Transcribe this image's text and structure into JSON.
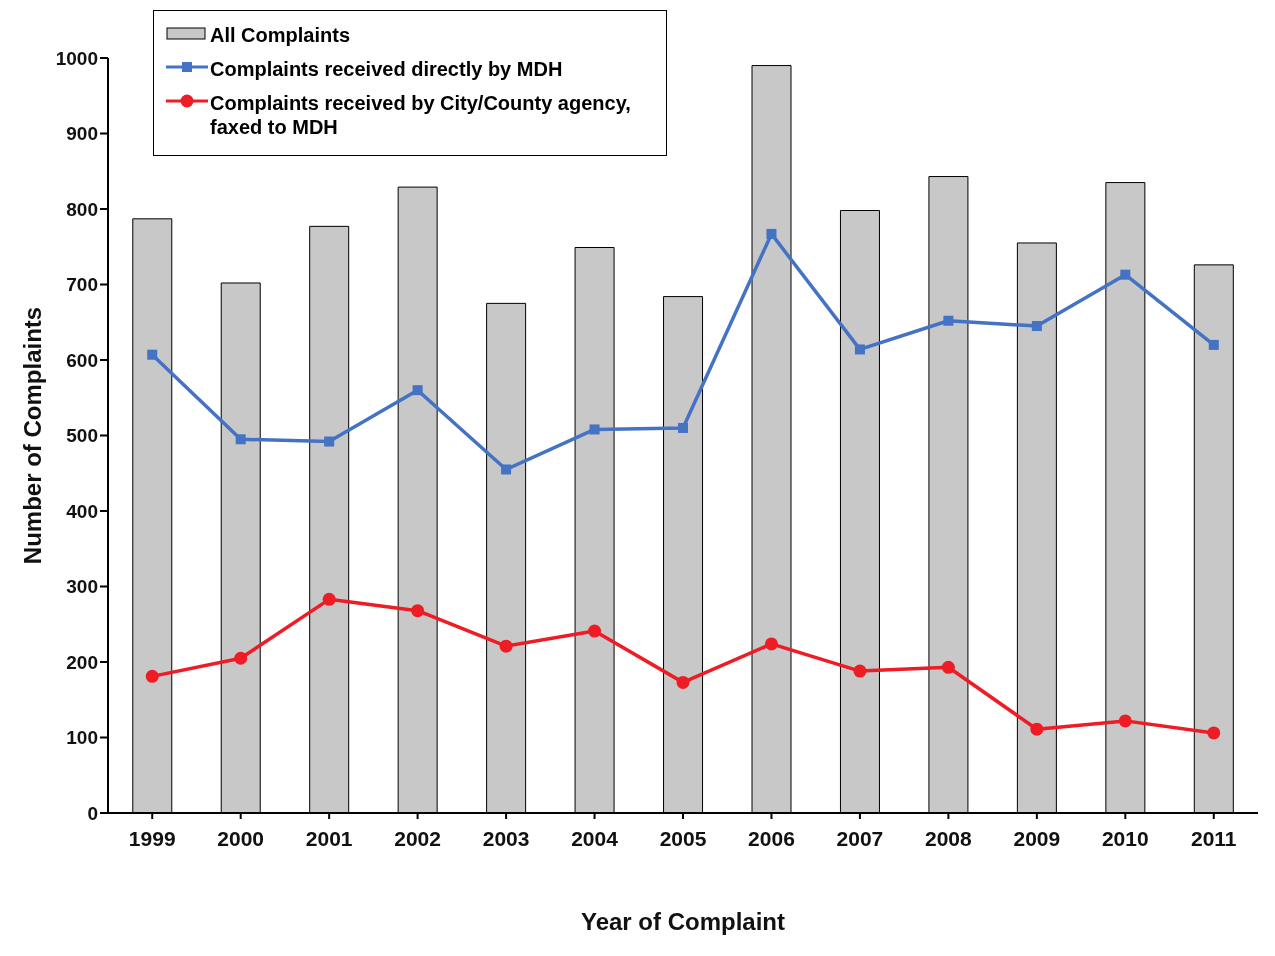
{
  "chart_data": {
    "type": "bar",
    "xlabel": "Year of Complaint",
    "ylabel": "Number of Complaints",
    "categories": [
      "1999",
      "2000",
      "2001",
      "2002",
      "2003",
      "2004",
      "2005",
      "2006",
      "2007",
      "2008",
      "2009",
      "2010",
      "2011"
    ],
    "ylim": [
      0,
      1000
    ],
    "yticks": [
      0,
      100,
      200,
      300,
      400,
      500,
      600,
      700,
      800,
      900,
      1000
    ],
    "grid": false,
    "legend": "top left",
    "series": [
      {
        "name": "All Complaints",
        "color": "#c8c8c8",
        "values": [
          787,
          702,
          777,
          829,
          675,
          749,
          684,
          990,
          798,
          843,
          755,
          835,
          726
        ]
      },
      {
        "name": "Complaints received directly by MDH",
        "type": "line",
        "color": "#4472c4",
        "marker": "square",
        "values": [
          607,
          495,
          492,
          560,
          455,
          508,
          510,
          767,
          614,
          652,
          645,
          713,
          620
        ]
      },
      {
        "name": "Complaints received by City/County agency, faxed to MDH",
        "type": "line",
        "color": "#ee1c25",
        "marker": "circle",
        "values": [
          181,
          205,
          283,
          268,
          221,
          241,
          173,
          224,
          188,
          193,
          111,
          122,
          106
        ]
      }
    ]
  }
}
